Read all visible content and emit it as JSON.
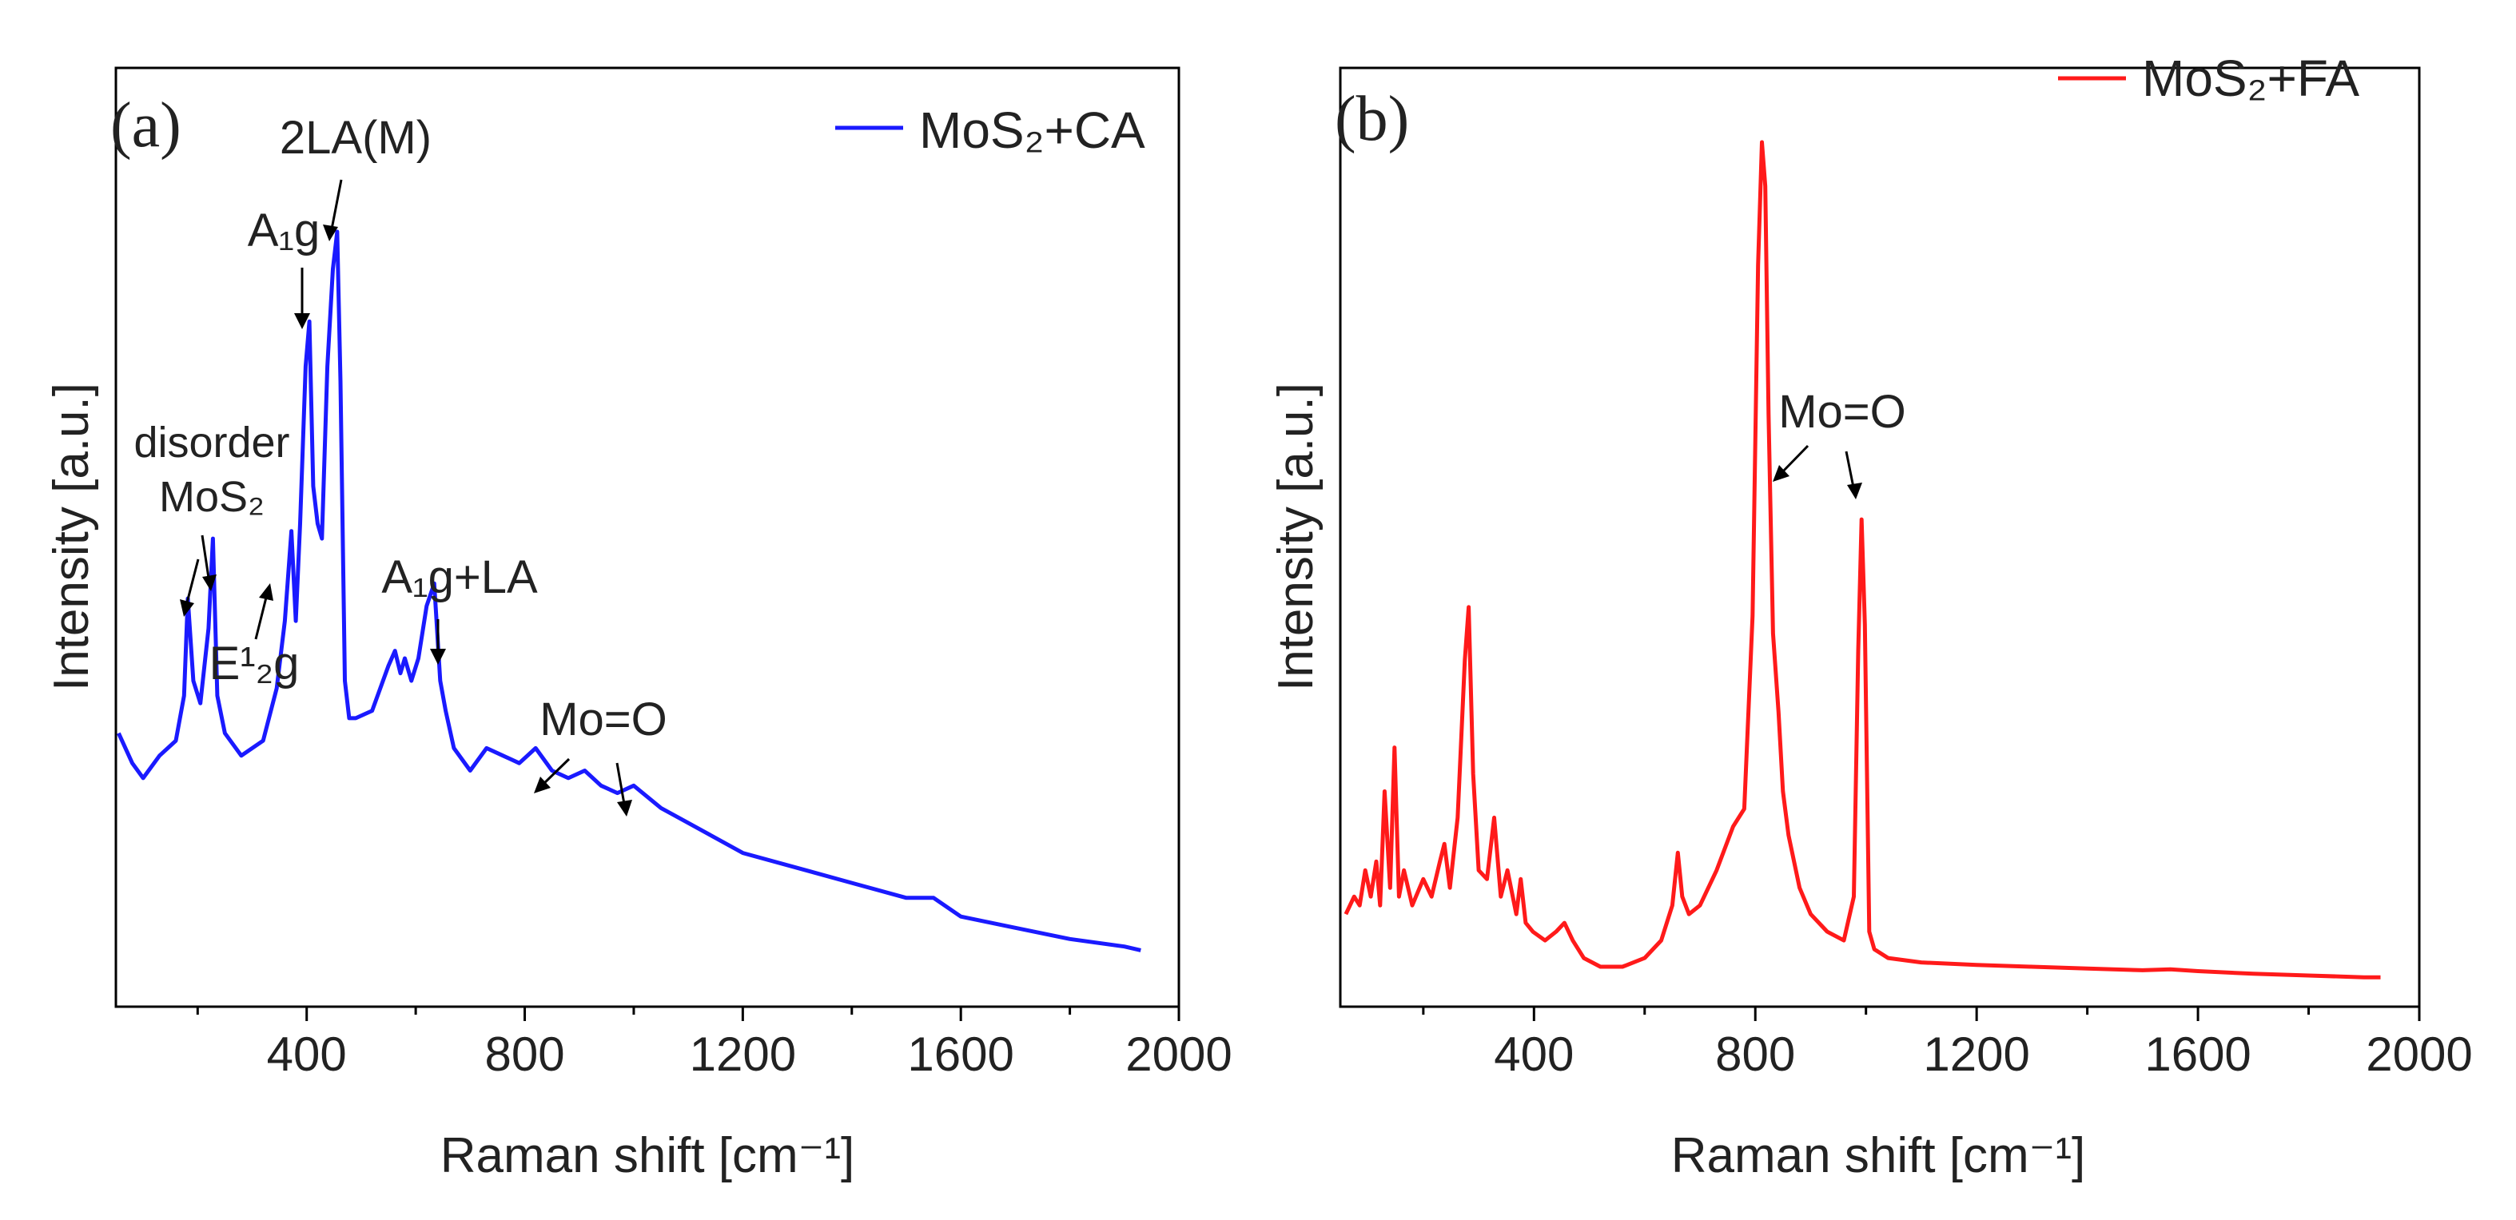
{
  "charts": [
    {
      "panel_label": "(a)",
      "legend": "MoS₂+CA",
      "xlabel": "Raman shift [cm⁻¹]",
      "ylabel": "Intensity [a.u.]",
      "color": "#1a1aff",
      "annotations": {
        "la2m": "2LA(M)",
        "a1g": "A₁g",
        "disorder": "disorder",
        "disorder_mos2": "MoS₂",
        "e12g": "E¹₂g",
        "a1g_la": "A₁g+LA",
        "mo_o": "Mo=O"
      }
    },
    {
      "panel_label": "(b)",
      "legend": "MoS₂+FA",
      "xlabel": "Raman shift [cm⁻¹]",
      "ylabel": "Intensity [a.u.]",
      "color": "#ff1a1a",
      "annotations": {
        "mo_o": "Mo=O"
      }
    }
  ],
  "chart_data": [
    {
      "type": "line",
      "title": "(a)",
      "xlabel": "Raman shift [cm-1]",
      "ylabel": "Intensity [a.u.]",
      "xlim": [
        50,
        2000
      ],
      "ylim": [
        0,
        100
      ],
      "xticks": [
        400,
        800,
        1200,
        1600,
        2000
      ],
      "legend_position": "top-right",
      "series": [
        {
          "name": "MoS2+CA",
          "color": "#1a1aff",
          "x": [
            55,
            80,
            100,
            130,
            160,
            175,
            182,
            192,
            205,
            220,
            228,
            236,
            250,
            280,
            320,
            345,
            360,
            372,
            380,
            388,
            398,
            405,
            412,
            420,
            428,
            438,
            448,
            456,
            462,
            470,
            478,
            490,
            520,
            550,
            562,
            572,
            580,
            592,
            605,
            620,
            634,
            645,
            655,
            670,
            700,
            730,
            760,
            790,
            820,
            850,
            880,
            910,
            940,
            970,
            1000,
            1050,
            1100,
            1150,
            1200,
            1300,
            1400,
            1500,
            1550,
            1600,
            1700,
            1800,
            1900,
            1930
          ],
          "y": [
            28,
            24,
            22,
            25,
            27,
            33,
            46,
            35,
            32,
            42,
            54,
            33,
            28,
            25,
            27,
            34,
            43,
            55,
            43,
            56,
            77,
            83,
            61,
            56,
            54,
            77,
            90,
            95,
            75,
            35,
            30,
            30,
            31,
            37,
            39,
            36,
            38,
            35,
            38,
            45,
            48,
            35,
            31,
            26,
            23,
            26,
            25,
            24,
            26,
            23,
            22,
            23,
            21,
            20,
            21,
            18,
            16,
            14,
            12,
            10,
            8,
            6,
            6,
            3.5,
            2,
            0.5,
            -0.5,
            -1
          ]
        }
      ],
      "annotations": [
        "2LA(M)",
        "A1g",
        "disorder MoS2",
        "E12g",
        "A1g+LA",
        "Mo=O"
      ]
    },
    {
      "type": "line",
      "title": "(b)",
      "xlabel": "Raman shift [cm-1]",
      "ylabel": "Intensity [a.u.]",
      "xlim": [
        50,
        2000
      ],
      "ylim": [
        0,
        100
      ],
      "xticks": [
        400,
        800,
        1200,
        1600,
        2000
      ],
      "legend_position": "top-right",
      "series": [
        {
          "name": "MoS2+FA",
          "color": "#ff1a1a",
          "x": [
            60,
            75,
            85,
            95,
            105,
            115,
            122,
            130,
            140,
            148,
            156,
            165,
            180,
            200,
            215,
            230,
            238,
            248,
            262,
            275,
            282,
            290,
            300,
            315,
            328,
            340,
            352,
            368,
            376,
            385,
            398,
            420,
            440,
            455,
            470,
            490,
            520,
            560,
            600,
            630,
            650,
            660,
            668,
            680,
            700,
            730,
            760,
            780,
            795,
            805,
            812,
            818,
            824,
            832,
            842,
            850,
            860,
            880,
            900,
            930,
            960,
            978,
            986,
            992,
            998,
            1006,
            1015,
            1040,
            1100,
            1200,
            1300,
            1400,
            1500,
            1550,
            1600,
            1700,
            1800,
            1900,
            1930
          ],
          "y": [
            8,
            10,
            9,
            13,
            10,
            14,
            9,
            22,
            11,
            27,
            10,
            13,
            9,
            12,
            10,
            14,
            16,
            11,
            19,
            37,
            43,
            24,
            13,
            12,
            19,
            10,
            13,
            8,
            12,
            7,
            6,
            5,
            6,
            7,
            5,
            3,
            2,
            2,
            3,
            5,
            9,
            15,
            10,
            8,
            9,
            13,
            18,
            20,
            42,
            82,
            96,
            91,
            65,
            40,
            31,
            22,
            17,
            11,
            8,
            6,
            5,
            10,
            38,
            53,
            41,
            6,
            4,
            3,
            2.5,
            2.2,
            2,
            1.8,
            1.6,
            1.7,
            1.5,
            1.2,
            1,
            0.8,
            0.8
          ]
        }
      ],
      "annotations": [
        "Mo=O"
      ]
    }
  ]
}
